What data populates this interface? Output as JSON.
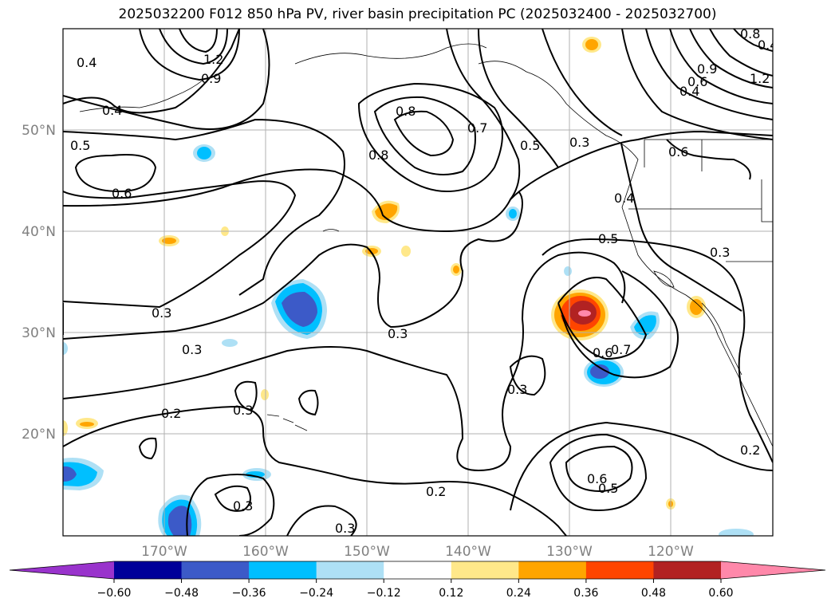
{
  "title": "2025032200 F012 850 hPa PV, river basin precipitation PC (2025032400 - 2025032700)",
  "map": {
    "lon_labels": [
      "170°W",
      "160°W",
      "150°W",
      "140°W",
      "130°W",
      "120°W"
    ],
    "lat_labels": [
      "50°N",
      "40°N",
      "30°N",
      "20°N"
    ],
    "contour_labels": [
      "0.4",
      "1.2",
      "0.9",
      "0.8",
      "0.4",
      "0.5",
      "0.6",
      "0.8",
      "0.7",
      "0.5",
      "0.3",
      "0.6",
      "0.4",
      "0.5",
      "0.3",
      "0.3",
      "0.3",
      "0.3",
      "0.6",
      "0.7",
      "0.3",
      "0.2",
      "0.3",
      "0.2",
      "0.6",
      "0.5",
      "0.3",
      "0.2",
      "0.3",
      "0.9",
      "0.6",
      "0.4",
      "1.2",
      "0.8",
      "0.4"
    ]
  },
  "colorbar": {
    "ticks": [
      "−0.60",
      "−0.48",
      "−0.36",
      "−0.24",
      "−0.12",
      "0.12",
      "0.24",
      "0.36",
      "0.48",
      "0.60"
    ],
    "colors": [
      "#9933cc",
      "#000099",
      "#3c5ac8",
      "#00bfff",
      "#aee0f5",
      "#ffffff",
      "#ffe88a",
      "#ffa500",
      "#ff4500",
      "#b22222",
      "#ff88aa"
    ]
  }
}
